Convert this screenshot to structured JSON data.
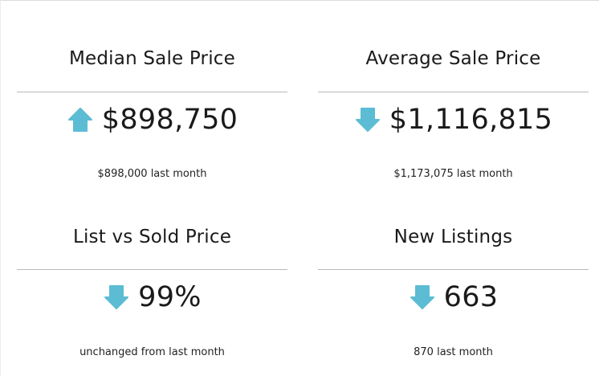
{
  "accent_color": "#5cbcd3",
  "stats": [
    {
      "title": "Median Sale Price",
      "value": "$898,750",
      "trend": "up",
      "trend_icon": "arrow-up-icon",
      "comparison": "$898,000 last month"
    },
    {
      "title": "Average Sale Price",
      "value": "$1,116,815",
      "trend": "down",
      "trend_icon": "arrow-down-icon",
      "comparison": "$1,173,075 last month"
    },
    {
      "title": "List vs Sold Price",
      "value": "99%",
      "trend": "down",
      "trend_icon": "arrow-down-icon",
      "comparison": "unchanged from last month"
    },
    {
      "title": "New Listings",
      "value": "663",
      "trend": "down",
      "trend_icon": "arrow-down-icon",
      "comparison": "870 last month"
    }
  ]
}
